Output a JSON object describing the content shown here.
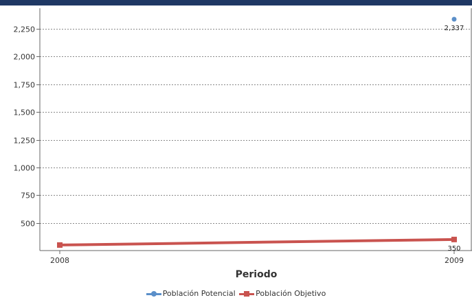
{
  "chart_data": {
    "type": "line",
    "categories": [
      "2008",
      "2009"
    ],
    "xlabel": "Periodo",
    "ylabel": "",
    "ylim": [
      250,
      2400
    ],
    "yticks": [
      500,
      750,
      1000,
      1250,
      1500,
      1750,
      2000,
      2250
    ],
    "ytick_labels": [
      "500",
      "750",
      "1,000",
      "1,250",
      "1,500",
      "1,750",
      "2,000",
      "2,250"
    ],
    "grid": true,
    "legend_position": "bottom",
    "series": [
      {
        "name": "Población Potencial",
        "color": "#5b8fc9",
        "marker": "circle",
        "values": [
          null,
          2337
        ],
        "labels": [
          null,
          "2,337"
        ]
      },
      {
        "name": "Población Objetivo",
        "color": "#c9534f",
        "marker": "square",
        "values": [
          300,
          350
        ],
        "labels": [
          null,
          "350"
        ]
      }
    ]
  }
}
